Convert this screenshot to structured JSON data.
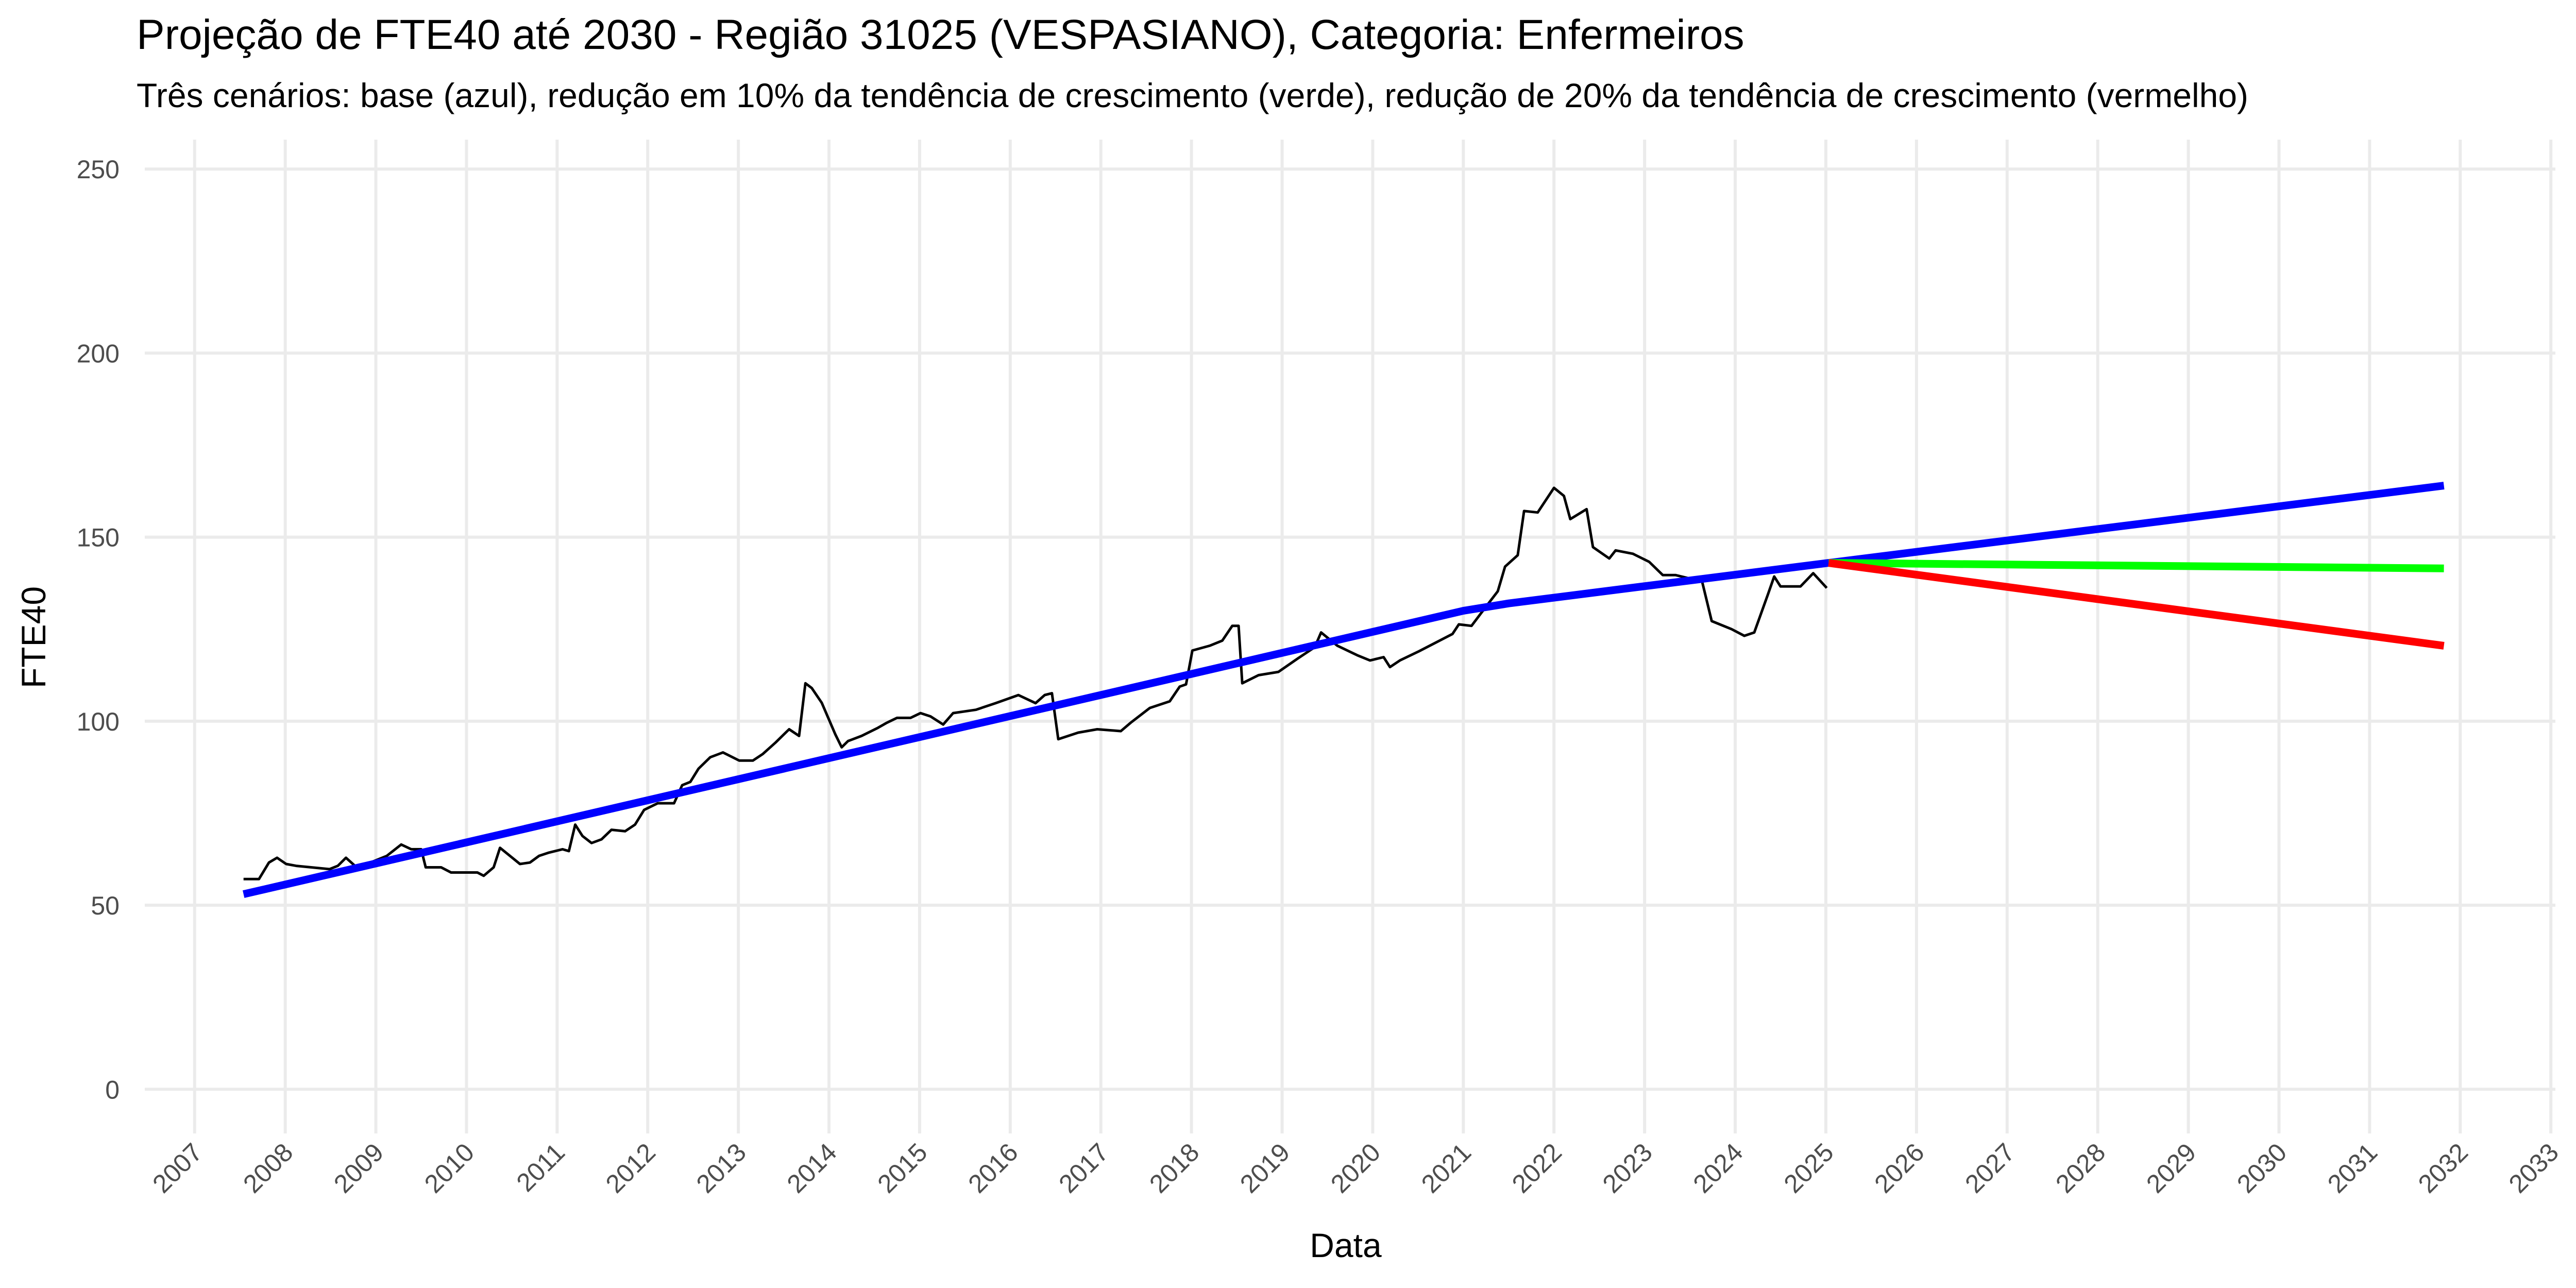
{
  "chart_data": {
    "type": "line",
    "title": "Projeção de FTE40 até 2030 - Região 31025 (VESPASIANO), Categoria: Enfermeiros",
    "subtitle": "Três cenários: base (azul), redução em 10% da tendência de crescimento (verde), redução de 20% da tendência de crescimento (vermelho)",
    "x_label": "Data",
    "y_label": "FTE40",
    "xlim": [
      2006.45,
      2033.05
    ],
    "ylim": [
      -12,
      258
    ],
    "xticks": [
      2007,
      2008,
      2009,
      2010,
      2011,
      2012,
      2013,
      2014,
      2015,
      2016,
      2017,
      2018,
      2019,
      2020,
      2021,
      2022,
      2023,
      2024,
      2025,
      2026,
      2027,
      2028,
      2029,
      2030,
      2031,
      2032,
      2033
    ],
    "yticks": [
      0,
      50,
      100,
      150,
      200,
      250
    ],
    "grid": true,
    "series": [
      {
        "color": "#000000",
        "width": "thin",
        "x": [
          2007.54,
          2007.71,
          2007.82,
          2007.91,
          2008.01,
          2008.12,
          2008.49,
          2008.58,
          2008.67,
          2008.81,
          2008.94,
          2009.12,
          2009.28,
          2009.39,
          2009.5,
          2009.55,
          2009.72,
          2009.83,
          2010.12,
          2010.19,
          2010.3,
          2010.37,
          2010.48,
          2010.59,
          2010.7,
          2010.8,
          2010.91,
          2011.06,
          2011.13,
          2011.2,
          2011.28,
          2011.38,
          2011.49,
          2011.6,
          2011.75,
          2011.86,
          2011.96,
          2012.11,
          2012.29,
          2012.38,
          2012.47,
          2012.56,
          2012.69,
          2012.83,
          2013.01,
          2013.16,
          2013.27,
          2013.41,
          2013.56,
          2013.67,
          2013.74,
          2013.81,
          2013.92,
          2014.07,
          2014.14,
          2014.21,
          2014.36,
          2014.54,
          2014.64,
          2014.75,
          2014.9,
          2015.01,
          2015.12,
          2015.26,
          2015.37,
          2015.62,
          2015.84,
          2016.09,
          2016.28,
          2016.38,
          2016.46,
          2016.53,
          2016.75,
          2016.96,
          2017.22,
          2017.33,
          2017.54,
          2017.76,
          2017.87,
          2017.94,
          2018.01,
          2018.2,
          2018.34,
          2018.45,
          2018.52,
          2018.56,
          2018.74,
          2018.96,
          2019.17,
          2019.36,
          2019.43,
          2019.61,
          2019.83,
          2019.97,
          2020.12,
          2020.19,
          2020.3,
          2020.51,
          2020.7,
          2020.88,
          2020.95,
          2021.09,
          2021.24,
          2021.38,
          2021.46,
          2021.6,
          2021.67,
          2021.82,
          2022.0,
          2022.11,
          2022.18,
          2022.36,
          2022.43,
          2022.61,
          2022.68,
          2022.87,
          2023.05,
          2023.2,
          2023.34,
          2023.49,
          2023.63,
          2023.74,
          2023.96,
          2024.1,
          2024.21,
          2024.36,
          2024.43,
          2024.5,
          2024.72,
          2024.86,
          2025.01
        ],
        "values": [
          57.1,
          57.1,
          61.6,
          62.9,
          61.2,
          60.7,
          59.8,
          60.7,
          62.9,
          59.8,
          61.6,
          63.4,
          66.5,
          65.2,
          65.2,
          60.3,
          60.3,
          58.9,
          58.9,
          58.0,
          60.3,
          65.6,
          63.4,
          61.2,
          61.6,
          63.4,
          64.3,
          65.2,
          64.7,
          71.9,
          68.8,
          66.9,
          67.9,
          70.5,
          70.1,
          71.9,
          75.9,
          77.7,
          77.7,
          82.6,
          83.5,
          87.1,
          90.2,
          91.5,
          89.3,
          89.3,
          91.1,
          94.2,
          97.8,
          96.0,
          110.3,
          109.0,
          105.0,
          96.4,
          92.9,
          94.6,
          96.0,
          98.2,
          99.6,
          100.9,
          100.9,
          102.2,
          101.3,
          99.1,
          102.2,
          103.1,
          104.9,
          107.1,
          104.9,
          107.1,
          107.6,
          95.1,
          96.9,
          97.8,
          97.3,
          99.6,
          103.6,
          105.4,
          109.4,
          110.0,
          119.2,
          120.5,
          121.9,
          125.9,
          125.9,
          110.3,
          112.5,
          113.4,
          117.0,
          120.1,
          124.1,
          120.5,
          117.9,
          116.5,
          117.4,
          114.7,
          116.5,
          119.0,
          121.4,
          123.7,
          126.3,
          125.9,
          130.8,
          135.3,
          142.0,
          145.1,
          157.1,
          156.7,
          163.4,
          161.2,
          154.9,
          157.6,
          147.3,
          144.2,
          146.4,
          145.5,
          143.3,
          139.7,
          139.7,
          138.8,
          138.4,
          127.2,
          125.0,
          123.2,
          124.1,
          134.4,
          139.3,
          136.6,
          136.6,
          140.2,
          136.2
        ]
      },
      {
        "color": "#0000ff",
        "width": "thick",
        "x": [
          2007.54,
          2021.0,
          2021.5,
          2025.03,
          2031.82
        ],
        "values": [
          53,
          130,
          132,
          143,
          164
        ]
      },
      {
        "color": "#00ff00",
        "width": "thick",
        "x": [
          2025.03,
          2031.82
        ],
        "values": [
          143,
          141.5
        ]
      },
      {
        "color": "#ff0000",
        "width": "thick",
        "x": [
          2025.03,
          2031.82
        ],
        "values": [
          143,
          120.5
        ]
      }
    ]
  }
}
